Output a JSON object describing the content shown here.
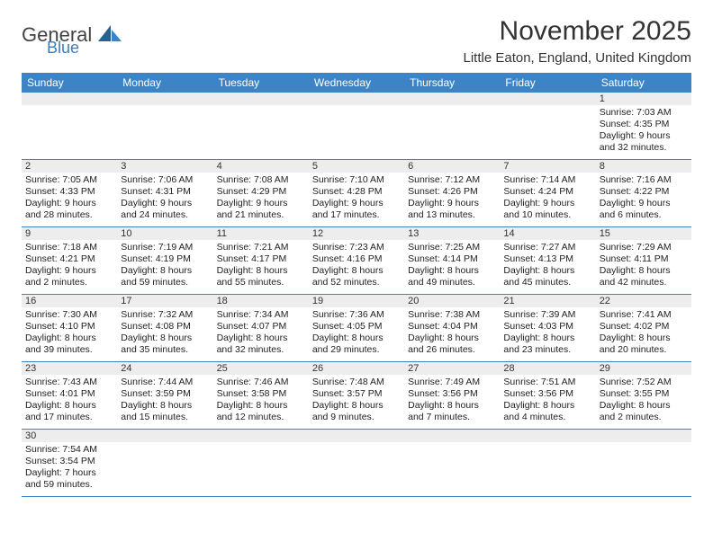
{
  "brand": {
    "general": "General",
    "blue": "Blue",
    "logo_color_dark": "#2a5f92",
    "logo_color_light": "#3d84c6"
  },
  "header": {
    "month_title": "November 2025",
    "location": "Little Eaton, England, United Kingdom"
  },
  "style": {
    "header_bg": "#3d84c6",
    "header_text": "#ffffff",
    "border_color": "#3d84c6",
    "daynum_bg": "#ededed",
    "empty_bg": "#f4f4f4",
    "title_fontsize": 30,
    "location_fontsize": 15,
    "dayheader_fontsize": 12,
    "cell_fontsize": 10.5
  },
  "day_headers": [
    "Sunday",
    "Monday",
    "Tuesday",
    "Wednesday",
    "Thursday",
    "Friday",
    "Saturday"
  ],
  "weeks": [
    [
      null,
      null,
      null,
      null,
      null,
      null,
      {
        "n": "1",
        "sr": "Sunrise: 7:03 AM",
        "ss": "Sunset: 4:35 PM",
        "d1": "Daylight: 9 hours",
        "d2": "and 32 minutes."
      }
    ],
    [
      {
        "n": "2",
        "sr": "Sunrise: 7:05 AM",
        "ss": "Sunset: 4:33 PM",
        "d1": "Daylight: 9 hours",
        "d2": "and 28 minutes."
      },
      {
        "n": "3",
        "sr": "Sunrise: 7:06 AM",
        "ss": "Sunset: 4:31 PM",
        "d1": "Daylight: 9 hours",
        "d2": "and 24 minutes."
      },
      {
        "n": "4",
        "sr": "Sunrise: 7:08 AM",
        "ss": "Sunset: 4:29 PM",
        "d1": "Daylight: 9 hours",
        "d2": "and 21 minutes."
      },
      {
        "n": "5",
        "sr": "Sunrise: 7:10 AM",
        "ss": "Sunset: 4:28 PM",
        "d1": "Daylight: 9 hours",
        "d2": "and 17 minutes."
      },
      {
        "n": "6",
        "sr": "Sunrise: 7:12 AM",
        "ss": "Sunset: 4:26 PM",
        "d1": "Daylight: 9 hours",
        "d2": "and 13 minutes."
      },
      {
        "n": "7",
        "sr": "Sunrise: 7:14 AM",
        "ss": "Sunset: 4:24 PM",
        "d1": "Daylight: 9 hours",
        "d2": "and 10 minutes."
      },
      {
        "n": "8",
        "sr": "Sunrise: 7:16 AM",
        "ss": "Sunset: 4:22 PM",
        "d1": "Daylight: 9 hours",
        "d2": "and 6 minutes."
      }
    ],
    [
      {
        "n": "9",
        "sr": "Sunrise: 7:18 AM",
        "ss": "Sunset: 4:21 PM",
        "d1": "Daylight: 9 hours",
        "d2": "and 2 minutes."
      },
      {
        "n": "10",
        "sr": "Sunrise: 7:19 AM",
        "ss": "Sunset: 4:19 PM",
        "d1": "Daylight: 8 hours",
        "d2": "and 59 minutes."
      },
      {
        "n": "11",
        "sr": "Sunrise: 7:21 AM",
        "ss": "Sunset: 4:17 PM",
        "d1": "Daylight: 8 hours",
        "d2": "and 55 minutes."
      },
      {
        "n": "12",
        "sr": "Sunrise: 7:23 AM",
        "ss": "Sunset: 4:16 PM",
        "d1": "Daylight: 8 hours",
        "d2": "and 52 minutes."
      },
      {
        "n": "13",
        "sr": "Sunrise: 7:25 AM",
        "ss": "Sunset: 4:14 PM",
        "d1": "Daylight: 8 hours",
        "d2": "and 49 minutes."
      },
      {
        "n": "14",
        "sr": "Sunrise: 7:27 AM",
        "ss": "Sunset: 4:13 PM",
        "d1": "Daylight: 8 hours",
        "d2": "and 45 minutes."
      },
      {
        "n": "15",
        "sr": "Sunrise: 7:29 AM",
        "ss": "Sunset: 4:11 PM",
        "d1": "Daylight: 8 hours",
        "d2": "and 42 minutes."
      }
    ],
    [
      {
        "n": "16",
        "sr": "Sunrise: 7:30 AM",
        "ss": "Sunset: 4:10 PM",
        "d1": "Daylight: 8 hours",
        "d2": "and 39 minutes."
      },
      {
        "n": "17",
        "sr": "Sunrise: 7:32 AM",
        "ss": "Sunset: 4:08 PM",
        "d1": "Daylight: 8 hours",
        "d2": "and 35 minutes."
      },
      {
        "n": "18",
        "sr": "Sunrise: 7:34 AM",
        "ss": "Sunset: 4:07 PM",
        "d1": "Daylight: 8 hours",
        "d2": "and 32 minutes."
      },
      {
        "n": "19",
        "sr": "Sunrise: 7:36 AM",
        "ss": "Sunset: 4:05 PM",
        "d1": "Daylight: 8 hours",
        "d2": "and 29 minutes."
      },
      {
        "n": "20",
        "sr": "Sunrise: 7:38 AM",
        "ss": "Sunset: 4:04 PM",
        "d1": "Daylight: 8 hours",
        "d2": "and 26 minutes."
      },
      {
        "n": "21",
        "sr": "Sunrise: 7:39 AM",
        "ss": "Sunset: 4:03 PM",
        "d1": "Daylight: 8 hours",
        "d2": "and 23 minutes."
      },
      {
        "n": "22",
        "sr": "Sunrise: 7:41 AM",
        "ss": "Sunset: 4:02 PM",
        "d1": "Daylight: 8 hours",
        "d2": "and 20 minutes."
      }
    ],
    [
      {
        "n": "23",
        "sr": "Sunrise: 7:43 AM",
        "ss": "Sunset: 4:01 PM",
        "d1": "Daylight: 8 hours",
        "d2": "and 17 minutes."
      },
      {
        "n": "24",
        "sr": "Sunrise: 7:44 AM",
        "ss": "Sunset: 3:59 PM",
        "d1": "Daylight: 8 hours",
        "d2": "and 15 minutes."
      },
      {
        "n": "25",
        "sr": "Sunrise: 7:46 AM",
        "ss": "Sunset: 3:58 PM",
        "d1": "Daylight: 8 hours",
        "d2": "and 12 minutes."
      },
      {
        "n": "26",
        "sr": "Sunrise: 7:48 AM",
        "ss": "Sunset: 3:57 PM",
        "d1": "Daylight: 8 hours",
        "d2": "and 9 minutes."
      },
      {
        "n": "27",
        "sr": "Sunrise: 7:49 AM",
        "ss": "Sunset: 3:56 PM",
        "d1": "Daylight: 8 hours",
        "d2": "and 7 minutes."
      },
      {
        "n": "28",
        "sr": "Sunrise: 7:51 AM",
        "ss": "Sunset: 3:56 PM",
        "d1": "Daylight: 8 hours",
        "d2": "and 4 minutes."
      },
      {
        "n": "29",
        "sr": "Sunrise: 7:52 AM",
        "ss": "Sunset: 3:55 PM",
        "d1": "Daylight: 8 hours",
        "d2": "and 2 minutes."
      }
    ],
    [
      {
        "n": "30",
        "sr": "Sunrise: 7:54 AM",
        "ss": "Sunset: 3:54 PM",
        "d1": "Daylight: 7 hours",
        "d2": "and 59 minutes."
      },
      null,
      null,
      null,
      null,
      null,
      null
    ]
  ]
}
